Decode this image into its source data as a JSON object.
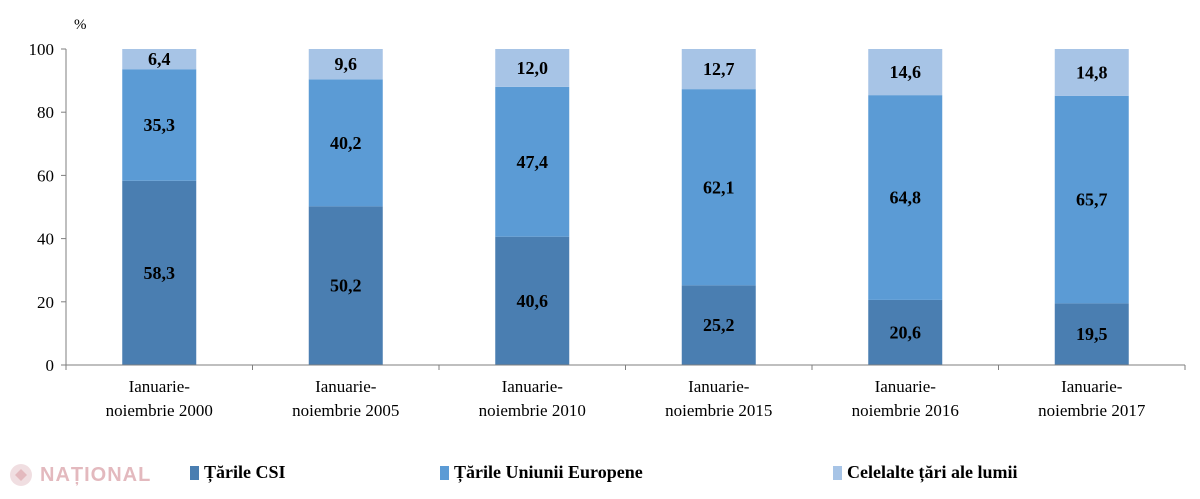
{
  "watermark": {
    "text": "NAȚIONAL"
  },
  "chart_data": {
    "type": "bar",
    "stacked": true,
    "unit": "%",
    "ylim": [
      0,
      100
    ],
    "yticks": [
      0,
      20,
      40,
      60,
      80,
      100
    ],
    "grid": false,
    "legend_position": "bottom",
    "categories": [
      [
        "Ianuarie-",
        "noiembrie 2000"
      ],
      [
        "Ianuarie-",
        "noiembrie 2005"
      ],
      [
        "Ianuarie-",
        "noiembrie 2010"
      ],
      [
        "Ianuarie-",
        "noiembrie 2015"
      ],
      [
        "Ianuarie-",
        "noiembrie 2016"
      ],
      [
        "Ianuarie-",
        "noiembrie 2017"
      ]
    ],
    "series": [
      {
        "name": "Țările CSI",
        "color": "#4a7eb1",
        "values": [
          58.3,
          50.2,
          40.6,
          25.2,
          20.6,
          19.5
        ],
        "labels": [
          "58,3",
          "50,2",
          "40,6",
          "25,2",
          "20,6",
          "19,5"
        ]
      },
      {
        "name": "Țările Uniunii Europene",
        "color": "#5b9bd5",
        "values": [
          35.3,
          40.2,
          47.4,
          62.1,
          64.8,
          65.7
        ],
        "labels": [
          "35,3",
          "40,2",
          "47,4",
          "62,1",
          "64,8",
          "65,7"
        ]
      },
      {
        "name": "Celelalte țări ale lumii",
        "color": "#a7c4e6",
        "values": [
          6.4,
          9.6,
          12.0,
          12.7,
          14.6,
          14.8
        ],
        "labels": [
          "6,4",
          "9,6",
          "12,0",
          "12,7",
          "14,6",
          "14,8"
        ]
      }
    ]
  }
}
